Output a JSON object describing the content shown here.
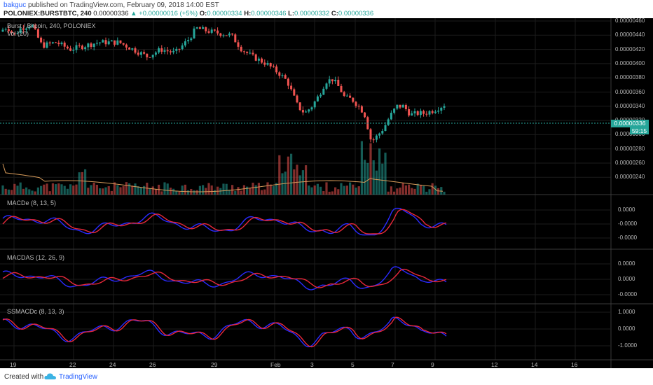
{
  "header": {
    "user": "bakguc",
    "published": "published on TradingView.com, February 09, 2018 14:00 EST",
    "symbol": "POLONIEX:BURSTBTC, 240",
    "price": "0.00000336",
    "change": "▲ +0.00000016 (+5%)",
    "o_label": "O:",
    "o_value": "0.00000334",
    "h_label": "H:",
    "h_value": "0.00000346",
    "l_label": "L:",
    "l_value": "0.00000332",
    "c_label": "C:",
    "c_value": "0.00000336"
  },
  "main_pane": {
    "title": "Burst / Bitcoin, 240, POLONIEX",
    "volume_label": "Vol (20)",
    "price_axis": [
      "0.00000460",
      "0.00000440",
      "0.00000420",
      "0.00000400",
      "0.00000380",
      "0.00000360",
      "0.00000340",
      "0.00000320",
      "0.00000300",
      "0.00000280",
      "0.00000260",
      "0.00000240"
    ],
    "last_price_badge": "0.00000336",
    "countdown_badge": "59:15"
  },
  "macde_pane": {
    "title": "MACDe (8, 13, 5)",
    "axis": [
      "0.0000",
      "-0.0000",
      "-0.0000"
    ]
  },
  "macdas_pane": {
    "title": "MACDAS (12, 26, 9)",
    "axis": [
      "0.0000",
      "0.0000",
      "-0.0000"
    ]
  },
  "ssmacdc_pane": {
    "title": "SSMACDc (8, 13, 3)",
    "axis": [
      "1.0000",
      "0.0000",
      "-1.0000"
    ]
  },
  "time_axis": [
    "19",
    "22",
    "24",
    "26",
    "29",
    "Feb",
    "3",
    "5",
    "7",
    "9",
    "12",
    "14",
    "16"
  ],
  "footer": {
    "created_with": "Created with",
    "brand": "TradingView"
  },
  "colors": {
    "bull": "#26a69a",
    "bear": "#ef5350",
    "macd_blue": "#2a2aff",
    "macd_red": "#e8283a",
    "grid": "#1c1c1c",
    "bg": "#000000"
  }
}
